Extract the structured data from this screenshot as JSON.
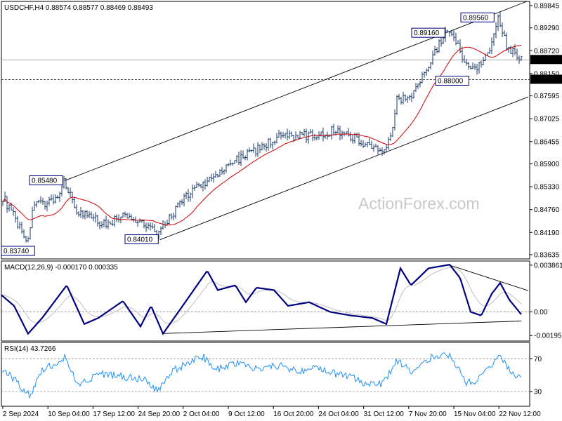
{
  "chart_data": [
    {
      "type": "candlestick",
      "panel": "price",
      "symbol_header": "USDCHF,H4  0.88574 0.88577 0.88469 0.88493",
      "ylim": [
        0.8353,
        0.8995
      ],
      "y_ticks": [
        0.89845,
        0.8929,
        0.8872,
        0.8815,
        0.87595,
        0.87025,
        0.86455,
        0.859,
        0.8533,
        0.8476,
        0.8419,
        0.83635
      ],
      "y_tick_labels": [
        "0.89845",
        "0.89290",
        "0.88720",
        "0.88150",
        "0.87595",
        "0.87025",
        "0.86455",
        "0.85900",
        "0.85330",
        "0.84760",
        "0.84190",
        "0.83635"
      ],
      "current_price": 0.88493,
      "current_price_label": "0.88493",
      "horizontal_level": 0.88,
      "horizontal_level_label": "0.88000",
      "ma_color": "#cc0000",
      "bar_color": "#1b3a6b",
      "channel_color": "#000000",
      "x_tick_labels": [
        "2 Sep 2024",
        "10 Sep 04:00",
        "17 Sep 12:00",
        "24 Sep 20:00",
        "2 Oct 04:00",
        "9 Oct 12:00",
        "16 Oct 20:00",
        "24 Oct 04:00",
        "31 Oct 12:00",
        "7 Nov 20:00",
        "15 Nov 04:00",
        "22 Nov 12:00"
      ],
      "price_path": [
        [
          0,
          0.852
        ],
        [
          40,
          0.8395
        ],
        [
          46,
          0.848
        ],
        [
          85,
          0.851
        ],
        [
          92,
          0.8548
        ],
        [
          110,
          0.847
        ],
        [
          150,
          0.844
        ],
        [
          175,
          0.846
        ],
        [
          205,
          0.8445
        ],
        [
          225,
          0.841
        ],
        [
          245,
          0.8465
        ],
        [
          275,
          0.853
        ],
        [
          305,
          0.8555
        ],
        [
          335,
          0.86
        ],
        [
          365,
          0.8625
        ],
        [
          395,
          0.8655
        ],
        [
          425,
          0.866
        ],
        [
          455,
          0.8662
        ],
        [
          475,
          0.8675
        ],
        [
          500,
          0.866
        ],
        [
          520,
          0.864
        ],
        [
          540,
          0.8622
        ],
        [
          555,
          0.865
        ],
        [
          565,
          0.875
        ],
        [
          585,
          0.876
        ],
        [
          600,
          0.88
        ],
        [
          615,
          0.886
        ],
        [
          635,
          0.8916
        ],
        [
          650,
          0.8895
        ],
        [
          665,
          0.883
        ],
        [
          680,
          0.8835
        ],
        [
          695,
          0.887
        ],
        [
          710,
          0.8956
        ],
        [
          720,
          0.889
        ],
        [
          735,
          0.886
        ],
        [
          742,
          0.8849
        ]
      ],
      "channel_upper": [
        [
          92,
          0.8548
        ],
        [
          750,
          0.8995
        ]
      ],
      "channel_lower": [
        [
          228,
          0.8401
        ],
        [
          752,
          0.8757
        ]
      ],
      "annotations": [
        {
          "label": "0.83740",
          "value": 0.8374
        },
        {
          "label": "0.85480",
          "value": 0.8548
        },
        {
          "label": "0.84010",
          "value": 0.8401
        },
        {
          "label": "0.89160",
          "value": 0.8916
        },
        {
          "label": "0.89560",
          "value": 0.8956
        },
        {
          "label": "0.88000",
          "value": 0.88
        }
      ],
      "watermark": "ActionForex.com"
    },
    {
      "type": "line",
      "panel": "macd",
      "title": "MACD(12,26,9) -0.000170 0.000335",
      "ylim": [
        -0.0024,
        0.0042
      ],
      "y_ticks": [
        0.003861,
        0.0,
        -0.00195
      ],
      "y_tick_labels": [
        "0.003861",
        "0.00",
        "-0.00195"
      ],
      "zero_line": 0.0,
      "macd_color": "#000080",
      "signal_color": "#c0c0c0",
      "trend_lines": [
        [
          [
            232,
            -0.00178
          ],
          [
            742,
            -0.00075
          ]
        ],
        [
          [
            640,
            0.00386
          ],
          [
            752,
            0.00176
          ]
        ]
      ],
      "macd_path": [
        [
          0,
          0.0015
        ],
        [
          20,
          0.0005
        ],
        [
          40,
          -0.0018
        ],
        [
          60,
          -0.0005
        ],
        [
          95,
          0.0022
        ],
        [
          120,
          -0.001
        ],
        [
          140,
          -0.0005
        ],
        [
          160,
          0.0003
        ],
        [
          175,
          0.0009
        ],
        [
          200,
          -0.0012
        ],
        [
          215,
          0.0005
        ],
        [
          232,
          -0.0018
        ],
        [
          260,
          0.0005
        ],
        [
          295,
          0.0034
        ],
        [
          310,
          0.0018
        ],
        [
          335,
          0.0022
        ],
        [
          350,
          0.0008
        ],
        [
          365,
          0.002
        ],
        [
          390,
          0.0018
        ],
        [
          410,
          0.0005
        ],
        [
          440,
          0.0008
        ],
        [
          470,
          0.0
        ],
        [
          500,
          -0.0003
        ],
        [
          530,
          -0.0005
        ],
        [
          550,
          -0.001
        ],
        [
          570,
          0.0036
        ],
        [
          585,
          0.0022
        ],
        [
          610,
          0.0036
        ],
        [
          640,
          0.0039
        ],
        [
          655,
          0.0028
        ],
        [
          670,
          0.0
        ],
        [
          685,
          -0.0003
        ],
        [
          700,
          0.0015
        ],
        [
          712,
          0.0024
        ],
        [
          725,
          0.001
        ],
        [
          742,
          -0.0002
        ]
      ]
    },
    {
      "type": "line",
      "panel": "rsi",
      "title": "RSI(14) 43.7266",
      "ylim": [
        12,
        90
      ],
      "y_ticks": [
        70,
        30
      ],
      "y_tick_labels": [
        "70",
        "30"
      ],
      "rsi_color": "#1e90ff",
      "rsi_path": [
        [
          0,
          60
        ],
        [
          20,
          45
        ],
        [
          42,
          25
        ],
        [
          60,
          55
        ],
        [
          92,
          72
        ],
        [
          110,
          40
        ],
        [
          150,
          52
        ],
        [
          175,
          48
        ],
        [
          205,
          45
        ],
        [
          225,
          30
        ],
        [
          245,
          55
        ],
        [
          275,
          68
        ],
        [
          290,
          72
        ],
        [
          305,
          55
        ],
        [
          335,
          65
        ],
        [
          365,
          58
        ],
        [
          395,
          62
        ],
        [
          425,
          55
        ],
        [
          455,
          60
        ],
        [
          475,
          52
        ],
        [
          500,
          48
        ],
        [
          525,
          38
        ],
        [
          545,
          40
        ],
        [
          565,
          68
        ],
        [
          585,
          55
        ],
        [
          600,
          62
        ],
        [
          615,
          72
        ],
        [
          635,
          78
        ],
        [
          650,
          62
        ],
        [
          665,
          40
        ],
        [
          680,
          45
        ],
        [
          695,
          58
        ],
        [
          712,
          76
        ],
        [
          725,
          55
        ],
        [
          742,
          44
        ]
      ]
    }
  ]
}
